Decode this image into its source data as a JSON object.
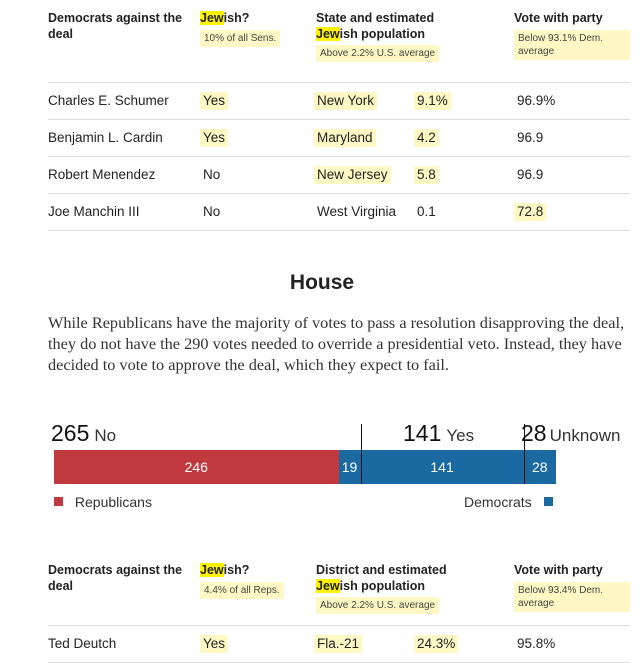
{
  "senate_table": {
    "headers": {
      "col0": "Democrats against the deal",
      "col1_highlight": "Jew",
      "col1_rest": "ish?",
      "col1_note": "10% of all Sens.",
      "col2_prefix": "State and estimated",
      "col2_highlight": "Jew",
      "col2_rest": "ish population",
      "col2_note": "Above 2.2% U.S. average",
      "col3": "Vote with party",
      "col3_note": "Below 93.1% Dem. average"
    },
    "rows": [
      {
        "name": "Charles E. Schumer",
        "jewish": "Yes",
        "state": "New York",
        "pop": "9.1%",
        "vote": "96.9%"
      },
      {
        "name": "Benjamin L. Cardin",
        "jewish": "Yes",
        "state": "Maryland",
        "pop": "4.2",
        "vote": "96.9"
      },
      {
        "name": "Robert Menendez",
        "jewish": "No",
        "state": "New Jersey",
        "pop": "5.8",
        "vote": "96.9"
      },
      {
        "name": "Joe Manchin III",
        "jewish": "No",
        "state": "West Virginia",
        "pop": "0.1",
        "vote": "72.8"
      }
    ]
  },
  "house": {
    "title": "House",
    "paragraph": "While Republicans have the majority of votes to pass a resolution disapproving the deal, they do not have the 290 votes needed to override a presidential veto. Instead, they have decided to vote to approve the deal, which they expect to fail."
  },
  "chart_data": {
    "type": "bar",
    "orientation": "horizontal-stacked",
    "total": 434,
    "groups": [
      {
        "name": "No",
        "total": 265
      },
      {
        "name": "Yes",
        "total": 141
      },
      {
        "name": "Unknown",
        "total": 28
      }
    ],
    "segments": [
      {
        "group": "No",
        "party": "Republicans",
        "value": 246,
        "color": "#c1393f"
      },
      {
        "group": "No",
        "party": "Democrats",
        "value": 19,
        "color": "#1a6aa1"
      },
      {
        "group": "Yes",
        "party": "Democrats",
        "value": 141,
        "color": "#1a6aa1"
      },
      {
        "group": "Unknown",
        "party": "Democrats",
        "value": 28,
        "color": "#1a6aa1"
      }
    ],
    "legend": [
      {
        "label": "Republicans",
        "color": "#c1393f",
        "position": "bottom-left"
      },
      {
        "label": "Democrats",
        "color": "#1a6aa1",
        "position": "bottom-right"
      }
    ]
  },
  "house_table": {
    "headers": {
      "col0": "Democrats against the deal",
      "col1_highlight": "Jew",
      "col1_rest": "ish?",
      "col1_note": "4.4% of all Reps.",
      "col2_prefix": "District and estimated",
      "col2_highlight": "Jew",
      "col2_rest": "ish population",
      "col2_note": "Above 2.2% U.S. average",
      "col3": "Vote with party",
      "col3_note": "Below 93.4% Dem. average"
    },
    "rows": [
      {
        "name": "Ted Deutch",
        "jewish": "Yes",
        "district": "Fla.-21",
        "pop": "24.3%",
        "vote": "95.8%"
      }
    ]
  }
}
